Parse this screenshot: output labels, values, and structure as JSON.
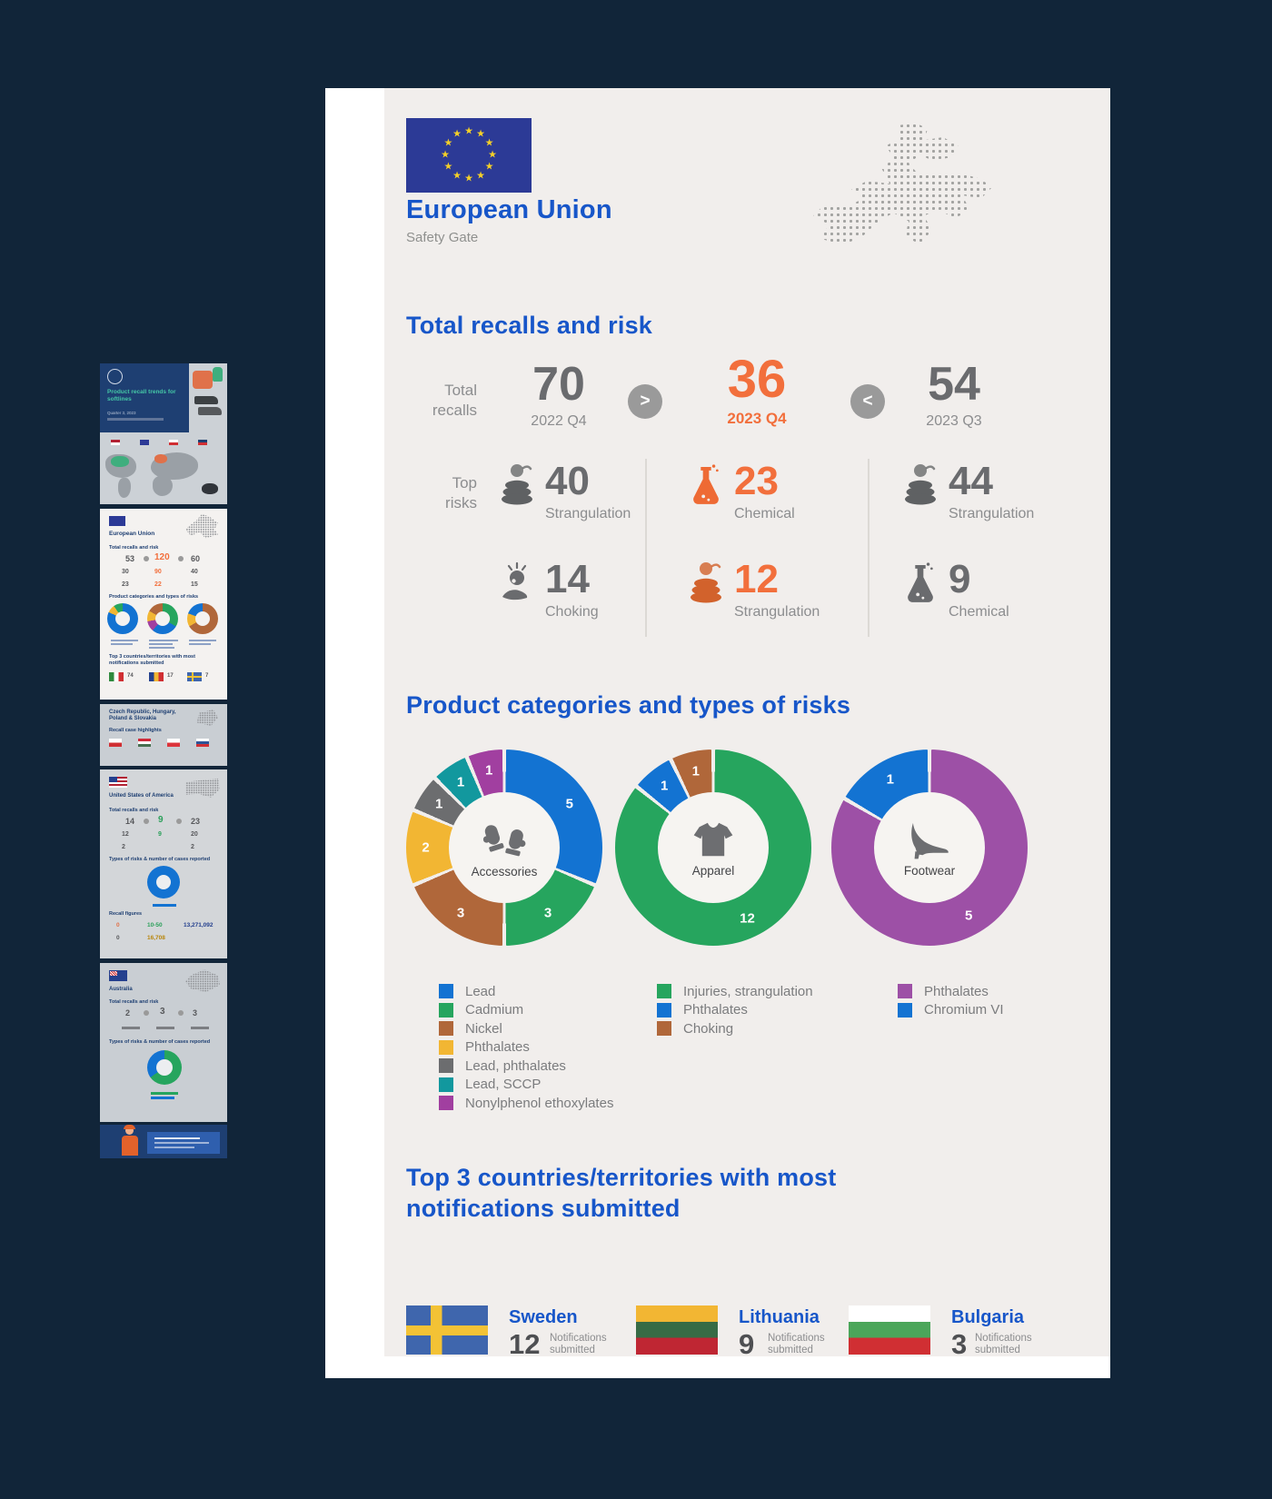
{
  "viewer": {
    "background": "#112539",
    "panel_color": "#ffffff",
    "page_color": "#f1eeec"
  },
  "chart_data": [
    {
      "type": "pie",
      "variant": "donut",
      "center_label": "Accessories",
      "center_icon": "mittens-icon",
      "segments": [
        {
          "label": "Lead",
          "value": 5,
          "color": "#1373d2"
        },
        {
          "label": "Cadmium",
          "value": 3,
          "color": "#26a55e"
        },
        {
          "label": "Nickel",
          "value": 3,
          "color": "#b0673a"
        },
        {
          "label": "Phthalates",
          "value": 2,
          "color": "#f2b633"
        },
        {
          "label": "Lead, phthalates",
          "value": 1,
          "color": "#6c6d6f"
        },
        {
          "label": "Lead, SCCP",
          "value": 1,
          "color": "#12989e"
        },
        {
          "label": "Nonylphenol ethoxylates",
          "value": 1,
          "color": "#a13fa0"
        }
      ]
    },
    {
      "type": "pie",
      "variant": "donut",
      "center_label": "Apparel",
      "center_icon": "tshirt-icon",
      "segments": [
        {
          "label": "Injuries, strangulation",
          "value": 12,
          "color": "#26a55e"
        },
        {
          "label": "Phthalates",
          "value": 1,
          "color": "#1373d2"
        },
        {
          "label": "Choking",
          "value": 1,
          "color": "#b0673a"
        }
      ]
    },
    {
      "type": "pie",
      "variant": "donut",
      "center_label": "Footwear",
      "center_icon": "high-heel-icon",
      "segments": [
        {
          "label": "Phthalates",
          "value": 5,
          "color": "#9d50a6"
        },
        {
          "label": "Chromium VI",
          "value": 1,
          "color": "#1373d2"
        }
      ]
    }
  ],
  "infographic": {
    "header": {
      "title": "European Union",
      "subtitle": "Safety Gate"
    },
    "totals_heading": "Total recalls and risk",
    "totals": {
      "row_label": "Total\nrecalls",
      "items": [
        {
          "value": "70",
          "period": "2022 Q4"
        },
        {
          "value": "36",
          "period": "2023 Q4"
        },
        {
          "value": "54",
          "period": "2023 Q3"
        }
      ],
      "comparators": [
        ">",
        "<"
      ]
    },
    "risks": {
      "row_label": "Top\nrisks",
      "items": [
        {
          "value": "40",
          "label": "Strangulation"
        },
        {
          "value": "23",
          "label": "Chemical"
        },
        {
          "value": "44",
          "label": "Strangulation"
        },
        {
          "value": "14",
          "label": "Choking"
        },
        {
          "value": "12",
          "label": "Strangulation"
        },
        {
          "value": "9",
          "label": "Chemical"
        }
      ]
    },
    "categories_heading": "Product categories and types of risks",
    "top3_heading_line1": "Top 3 countries/territories with most",
    "top3_heading_line2": "notifications submitted",
    "top3": {
      "countries": [
        {
          "name": "Sweden",
          "value": "12",
          "label": "Notifications submitted"
        },
        {
          "name": "Lithuania",
          "value": "9",
          "label": "Notifications submitted"
        },
        {
          "name": "Bulgaria",
          "value": "3",
          "label": "Notifications submitted"
        }
      ]
    }
  },
  "thumbnail": {
    "page1": {
      "title": "Product recall trends for softlines",
      "sub": "Quarter 3, 2023"
    },
    "page2": {
      "title": "European Union",
      "h1": "Total recalls and risk",
      "vals": [
        "53",
        "120",
        "60"
      ],
      "risks": [
        "30",
        "90",
        "40",
        "23",
        "22",
        "15"
      ],
      "h2": "Product categories and types of risks",
      "h3": "Top 3 countries/territories with most notifications submitted",
      "countries": [
        [
          "Italy",
          "74"
        ],
        [
          "Romania",
          "17"
        ],
        [
          "Sweden",
          "7"
        ]
      ]
    },
    "page3": {
      "title": "Czech Republic, Hungary, Poland & Slovakia",
      "h1": "Recall case highlights"
    },
    "page4": {
      "title": "United States of America",
      "h1": "Total recalls and risk",
      "vals": [
        "14",
        "9",
        "23"
      ],
      "risks": [
        "12",
        "9",
        "20",
        "2",
        "2"
      ],
      "h2": "Types of risks & number of cases reported",
      "h3": "Recall figures",
      "figs": [
        "0",
        "10-50",
        "13,271,092",
        "0",
        "16,708"
      ]
    },
    "page5": {
      "title": "Australia",
      "h1": "Total recalls and risk",
      "vals": [
        "2",
        "3",
        "3"
      ],
      "h2": "Types of risks & number of cases reported"
    }
  }
}
